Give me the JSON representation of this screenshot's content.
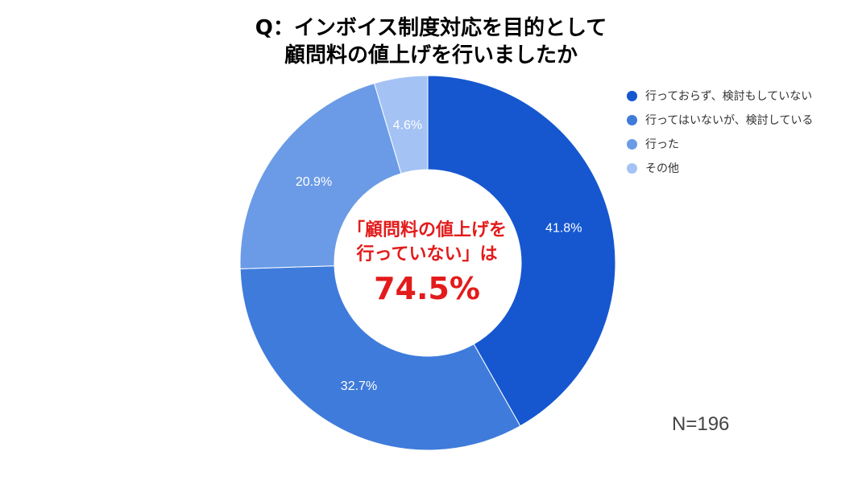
{
  "title": {
    "line1": "Q：インボイス制度対応を目的として",
    "line2": "顧問料の値上げを行いましたか"
  },
  "center": {
    "line1": "「顧問料の値上げを",
    "line2": "行っていない」は",
    "highlight": "74.5%"
  },
  "sample_size": "N=196",
  "chart_data": {
    "type": "pie",
    "subtype": "donut",
    "categories": [
      "行っておらず、検討もしていない",
      "行ってはいないが、検討している",
      "行った",
      "その他"
    ],
    "values": [
      41.8,
      32.7,
      20.9,
      4.6
    ],
    "value_labels": [
      "41.8%",
      "32.7%",
      "20.9%",
      "4.6%"
    ],
    "colors": [
      "#1657d0",
      "#3f7bdb",
      "#6b9be6",
      "#a4c2f4"
    ],
    "legend_position": "right"
  }
}
